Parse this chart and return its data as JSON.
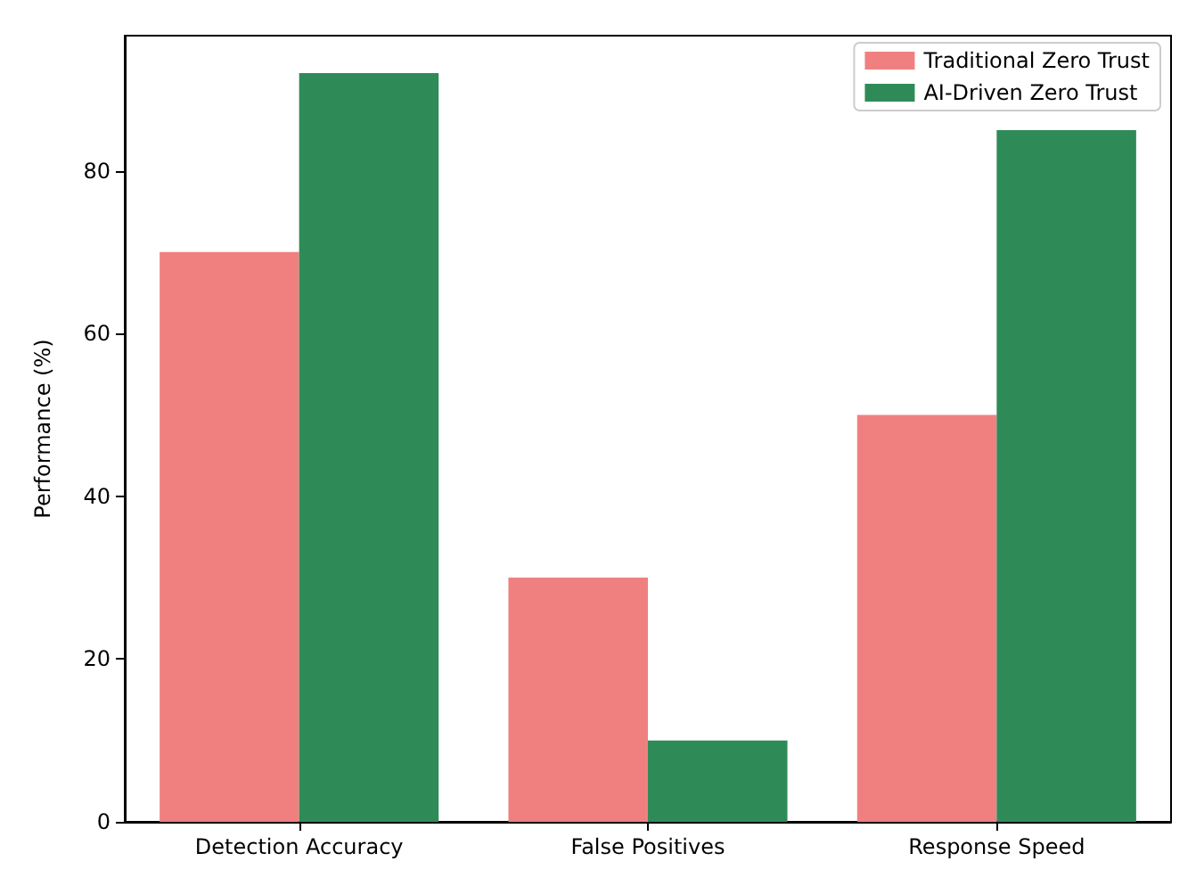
{
  "chart_data": {
    "type": "bar",
    "ylabel": "Performance (%)",
    "categories": [
      "Detection Accuracy",
      "False Positives",
      "Response Speed"
    ],
    "series": [
      {
        "name": "Traditional Zero Trust",
        "color": "#f08080",
        "values": [
          70,
          30,
          50
        ]
      },
      {
        "name": "AI-Driven Zero Trust",
        "color": "#2e8b57",
        "values": [
          92,
          10,
          85
        ]
      }
    ],
    "ylim": [
      0,
      96.6
    ],
    "yticks": [
      0,
      20,
      40,
      60,
      80
    ],
    "legend": "top right",
    "grid": false
  }
}
